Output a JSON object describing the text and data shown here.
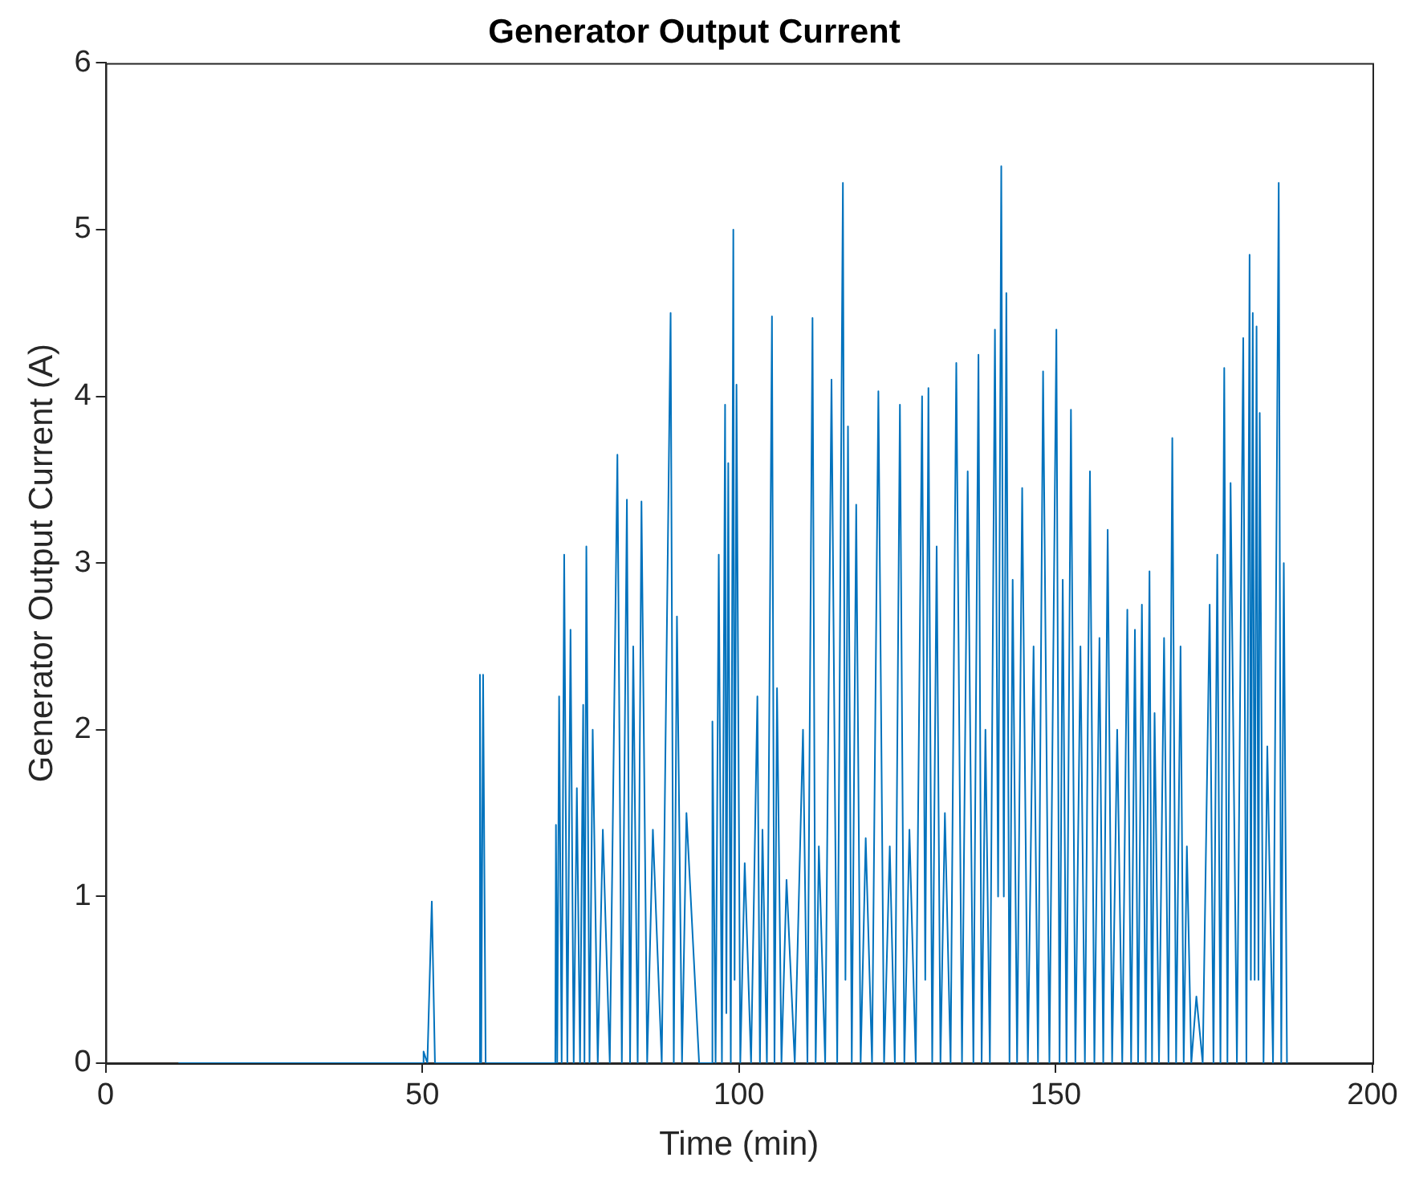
{
  "chart_data": {
    "type": "line",
    "title": "Generator Output Current",
    "xlabel": "Time (min)",
    "ylabel": "Generator Output Current (A)",
    "xlim": [
      0,
      200
    ],
    "xticks": [
      0,
      50,
      100,
      150,
      200
    ],
    "ylim": [
      0,
      6
    ],
    "yticks": [
      0,
      1,
      2,
      3,
      4,
      5,
      6
    ],
    "grid": false,
    "legend": false,
    "marker": "none",
    "line_style": "solid",
    "series": [
      {
        "color": "#0072bd",
        "x": [
          11.5,
          50,
          50.2,
          50.8,
          51.5,
          52,
          59.0,
          59.1,
          59.3,
          59.6,
          60,
          71.0,
          71.1,
          71.3,
          71.6,
          72,
          72.4,
          72.9,
          73.4,
          73.9,
          74.4,
          74.9,
          75.4,
          75.6,
          75.9,
          76.4,
          76.9,
          77.7,
          78.5,
          79.6,
          80.8,
          81.5,
          82.3,
          82.8,
          83.3,
          84,
          84.6,
          85.5,
          86.4,
          87.8,
          89.2,
          89.7,
          90.2,
          91,
          91.7,
          93.7,
          95.6,
          95.8,
          96.3,
          96.8,
          97.3,
          97.8,
          98,
          98.3,
          98.7,
          99.1,
          99.3,
          99.6,
          100.2,
          100.9,
          101.9,
          102.9,
          103.3,
          103.7,
          104.4,
          105.2,
          105.6,
          106.0,
          106.7,
          107.5,
          108.8,
          110.1,
          110.8,
          111.6,
          112.1,
          112.6,
          113.6,
          114.6,
          115.5,
          116.4,
          116.8,
          117.2,
          117.8,
          118.5,
          119.2,
          120.0,
          121,
          122.0,
          122.9,
          123.8,
          124.6,
          125.4,
          126.1,
          126.9,
          127.9,
          128.9,
          129.4,
          129.9,
          130.5,
          131.2,
          131.8,
          132.5,
          133.4,
          134.3,
          135.2,
          136.1,
          137,
          137.8,
          138.3,
          138.9,
          139.6,
          140.4,
          140.9,
          141.4,
          141.8,
          142.2,
          142.7,
          143.2,
          143.9,
          144.7,
          145.6,
          146.5,
          147.2,
          148.0,
          149,
          150.1,
          150.6,
          151.1,
          151.7,
          152.4,
          153.1,
          153.9,
          154.6,
          155.4,
          156.1,
          156.9,
          157.5,
          158.2,
          158.9,
          159.7,
          160.5,
          161.3,
          161.9,
          162.5,
          163,
          163.6,
          164.2,
          164.8,
          165.2,
          165.6,
          166.3,
          167.1,
          167.8,
          168.4,
          169,
          169.7,
          170.2,
          170.7,
          171.4,
          172.2,
          173.2,
          174.3,
          174.9,
          175.5,
          176,
          176.6,
          177.1,
          177.6,
          178.6,
          179.6,
          180.1,
          180.6,
          180.8,
          181.1,
          181.4,
          181.7,
          182,
          182.2,
          182.8,
          183.4,
          184.3,
          185.2,
          185.6,
          186.0,
          186.5
        ],
        "values": [
          0,
          0,
          0.07,
          0,
          0.97,
          0,
          0,
          2.33,
          0,
          2.33,
          0,
          0,
          1.43,
          0,
          2.2,
          0,
          3.05,
          0,
          2.6,
          0,
          1.65,
          0,
          2.15,
          0,
          3.1,
          0,
          2.0,
          0,
          1.4,
          0,
          3.65,
          0,
          3.38,
          0,
          2.5,
          0,
          3.37,
          0,
          1.4,
          0,
          4.5,
          0,
          2.68,
          0,
          1.5,
          0,
          0,
          2.05,
          0,
          3.05,
          0,
          3.95,
          0.3,
          3.6,
          0,
          5.0,
          0.5,
          4.07,
          0,
          1.2,
          0,
          2.2,
          0,
          1.4,
          0,
          4.48,
          0,
          2.25,
          0,
          1.1,
          0,
          2.0,
          0,
          4.47,
          0,
          1.3,
          0,
          4.1,
          0,
          5.28,
          0.5,
          3.82,
          0,
          3.35,
          0,
          1.35,
          0,
          4.03,
          0,
          1.3,
          0,
          3.95,
          0,
          1.4,
          0,
          4.0,
          0.5,
          4.05,
          0,
          3.1,
          0,
          1.5,
          0,
          4.2,
          0,
          3.55,
          0,
          4.25,
          0,
          2.0,
          0,
          4.4,
          1.0,
          5.38,
          1.0,
          4.62,
          0,
          2.9,
          0,
          3.45,
          0,
          2.5,
          0,
          4.15,
          0,
          4.4,
          0,
          2.9,
          0,
          3.92,
          0,
          2.5,
          0,
          3.55,
          0,
          2.55,
          0,
          3.2,
          0,
          2.0,
          0,
          2.72,
          0,
          2.6,
          0,
          2.75,
          0,
          2.95,
          0,
          2.1,
          0,
          2.55,
          0,
          3.75,
          0,
          2.5,
          0,
          1.3,
          0,
          0.4,
          0,
          2.75,
          0,
          3.05,
          0,
          4.17,
          0,
          3.48,
          0,
          4.35,
          0,
          4.85,
          0.5,
          4.5,
          0.5,
          4.42,
          0.5,
          3.9,
          0,
          1.9,
          0,
          5.28,
          0,
          3.0,
          0
        ]
      }
    ]
  }
}
